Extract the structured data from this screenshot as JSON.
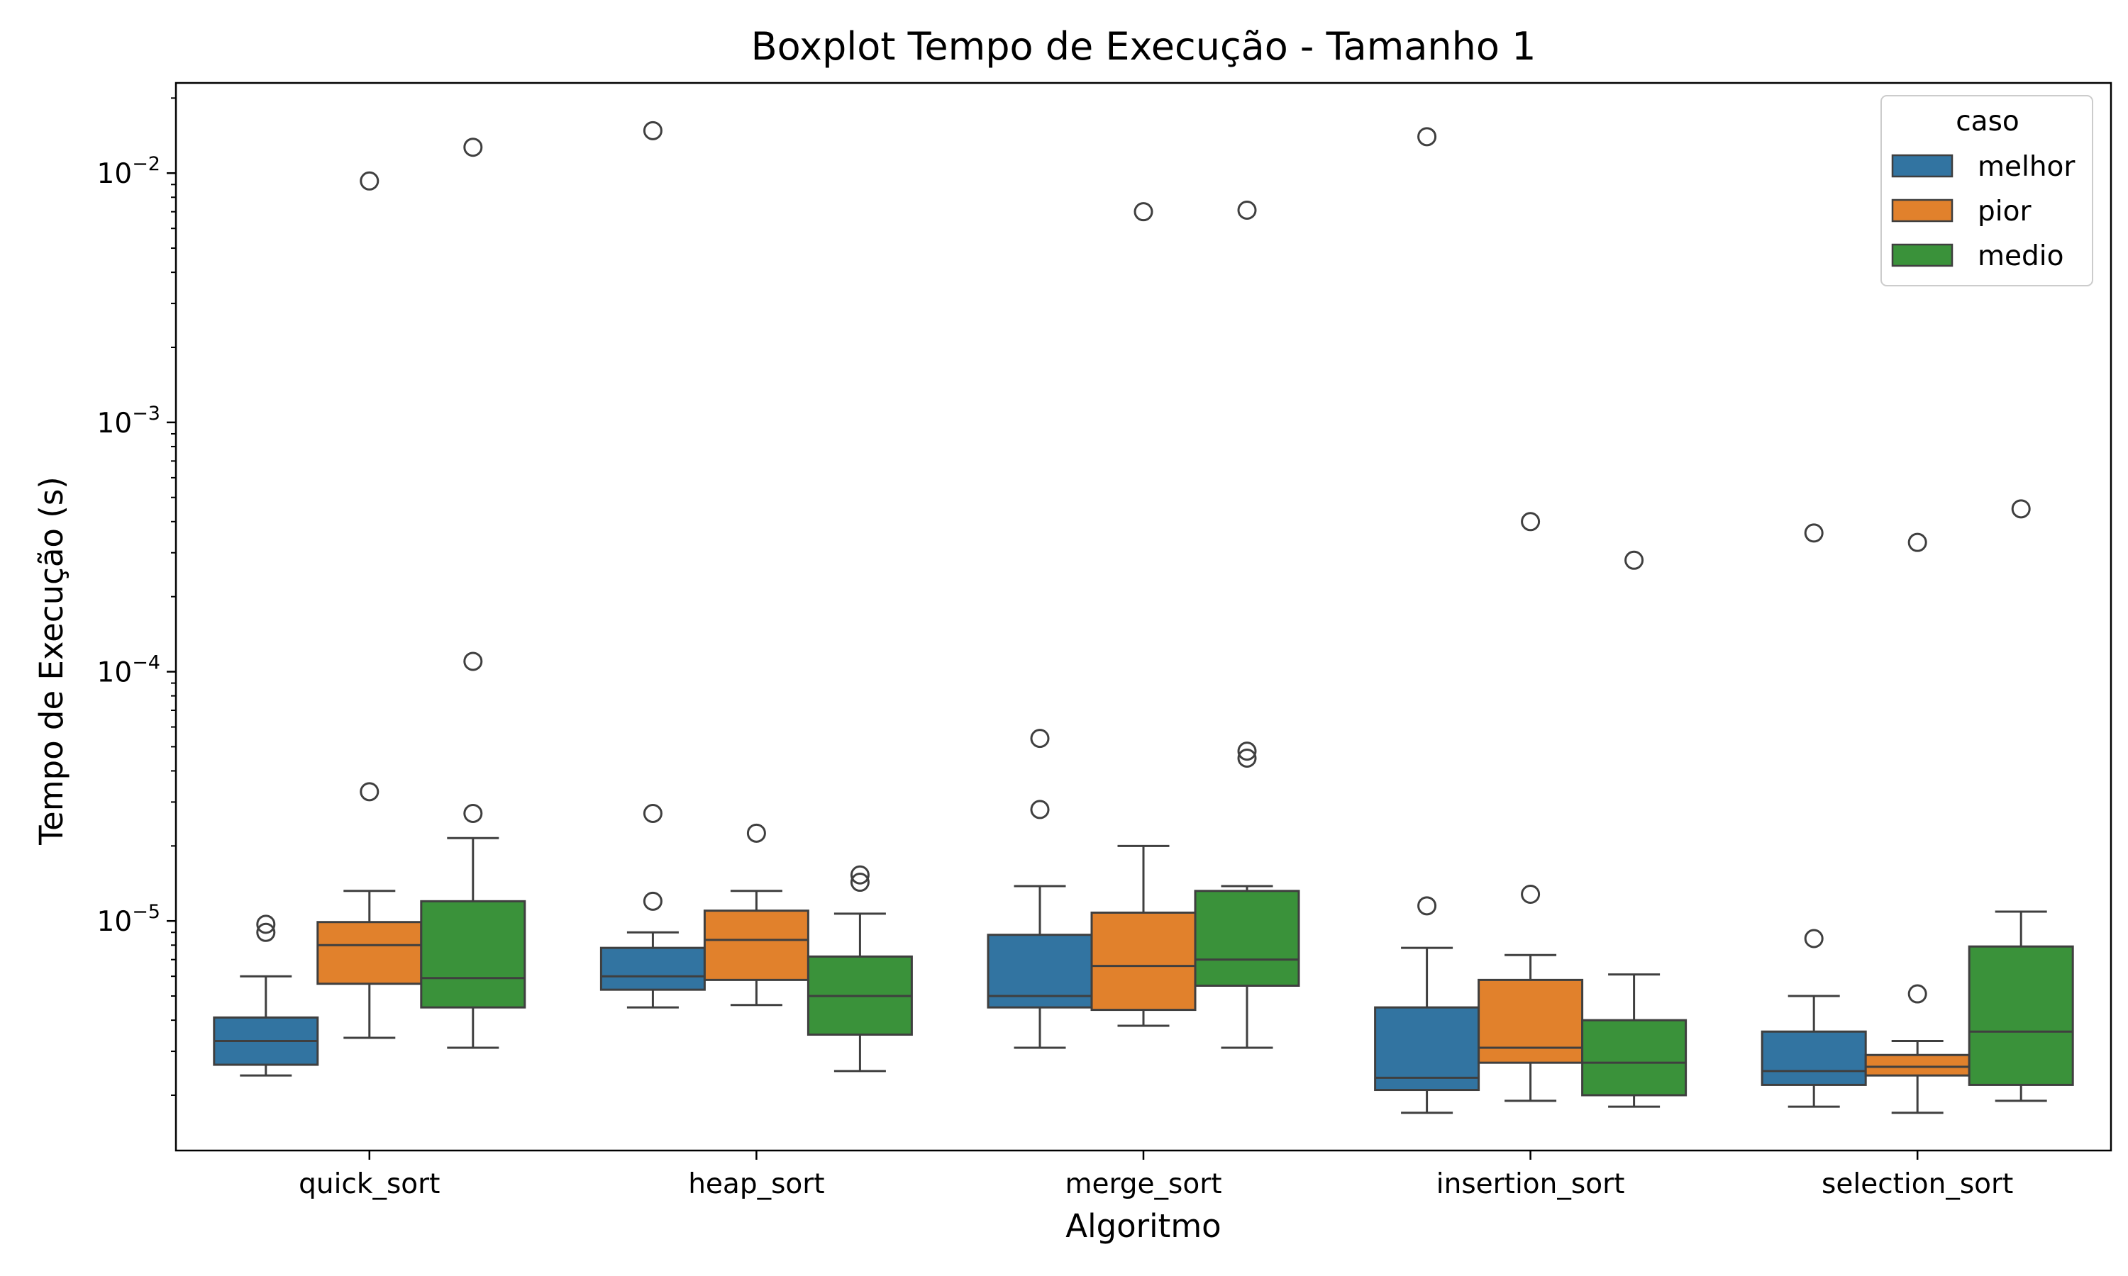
{
  "chart_data": {
    "type": "boxplot",
    "title": "Boxplot Tempo de Execução - Tamanho 1",
    "xlabel": "Algoritmo",
    "ylabel": "Tempo de Execução (s)",
    "yscale": "log",
    "ylim": [
      1.2e-06,
      0.023
    ],
    "y_ticks": [
      {
        "value": 1e-05,
        "base": "10",
        "exp": "−5"
      },
      {
        "value": 0.0001,
        "base": "10",
        "exp": "−4"
      },
      {
        "value": 0.001,
        "base": "10",
        "exp": "−3"
      },
      {
        "value": 0.01,
        "base": "10",
        "exp": "−2"
      }
    ],
    "categories": [
      "quick_sort",
      "heap_sort",
      "merge_sort",
      "insertion_sort",
      "selection_sort"
    ],
    "legend": {
      "title": "caso",
      "position": "top-right"
    },
    "series": [
      {
        "name": "melhor",
        "color": "#3274a1",
        "boxes": [
          {
            "whislo": 2.4e-06,
            "q1": 2.65e-06,
            "med": 3.3e-06,
            "q3": 4.1e-06,
            "whishi": 6e-06,
            "fliers": [
              9e-06,
              9.7e-06
            ]
          },
          {
            "whislo": 4.5e-06,
            "q1": 5.3e-06,
            "med": 6e-06,
            "q3": 7.8e-06,
            "whishi": 9e-06,
            "fliers": [
              1.2e-05,
              2.7e-05,
              0.0148
            ]
          },
          {
            "whislo": 3.1e-06,
            "q1": 4.5e-06,
            "med": 5e-06,
            "q3": 8.8e-06,
            "whishi": 1.38e-05,
            "fliers": [
              2.8e-05,
              5.4e-05
            ]
          },
          {
            "whislo": 1.7e-06,
            "q1": 2.1e-06,
            "med": 2.35e-06,
            "q3": 4.5e-06,
            "whishi": 7.8e-06,
            "fliers": [
              1.15e-05,
              0.014
            ]
          },
          {
            "whislo": 1.8e-06,
            "q1": 2.2e-06,
            "med": 2.5e-06,
            "q3": 3.6e-06,
            "whishi": 5e-06,
            "fliers": [
              8.5e-06,
              0.00036
            ]
          }
        ]
      },
      {
        "name": "pior",
        "color": "#e1812c",
        "boxes": [
          {
            "whislo": 3.4e-06,
            "q1": 5.6e-06,
            "med": 8e-06,
            "q3": 9.9e-06,
            "whishi": 1.32e-05,
            "fliers": [
              3.3e-05,
              0.0093
            ]
          },
          {
            "whislo": 4.6e-06,
            "q1": 5.8e-06,
            "med": 8.4e-06,
            "q3": 1.1e-05,
            "whishi": 1.32e-05,
            "fliers": [
              2.25e-05
            ]
          },
          {
            "whislo": 3.8e-06,
            "q1": 4.4e-06,
            "med": 6.6e-06,
            "q3": 1.08e-05,
            "whishi": 2e-05,
            "fliers": [
              0.007
            ]
          },
          {
            "whislo": 1.9e-06,
            "q1": 2.7e-06,
            "med": 3.1e-06,
            "q3": 5.8e-06,
            "whishi": 7.3e-06,
            "fliers": [
              1.28e-05,
              0.0004
            ]
          },
          {
            "whislo": 1.7e-06,
            "q1": 2.4e-06,
            "med": 2.6e-06,
            "q3": 2.9e-06,
            "whishi": 3.3e-06,
            "fliers": [
              5.1e-06,
              0.00033
            ]
          }
        ]
      },
      {
        "name": "medio",
        "color": "#3a923a",
        "boxes": [
          {
            "whislo": 3.1e-06,
            "q1": 4.5e-06,
            "med": 5.9e-06,
            "q3": 1.2e-05,
            "whishi": 2.15e-05,
            "fliers": [
              2.7e-05,
              0.00011,
              0.0127
            ]
          },
          {
            "whislo": 2.5e-06,
            "q1": 3.5e-06,
            "med": 5e-06,
            "q3": 7.2e-06,
            "whishi": 1.07e-05,
            "fliers": [
              1.43e-05,
              1.53e-05
            ]
          },
          {
            "whislo": 3.1e-06,
            "q1": 5.5e-06,
            "med": 7e-06,
            "q3": 1.32e-05,
            "whishi": 1.38e-05,
            "fliers": [
              4.5e-05,
              4.8e-05,
              0.0071
            ]
          },
          {
            "whislo": 1.8e-06,
            "q1": 2e-06,
            "med": 2.7e-06,
            "q3": 4e-06,
            "whishi": 6.1e-06,
            "fliers": [
              0.00028
            ]
          },
          {
            "whislo": 1.9e-06,
            "q1": 2.2e-06,
            "med": 3.6e-06,
            "q3": 7.9e-06,
            "whishi": 1.09e-05,
            "fliers": [
              0.00045
            ]
          }
        ]
      }
    ]
  }
}
